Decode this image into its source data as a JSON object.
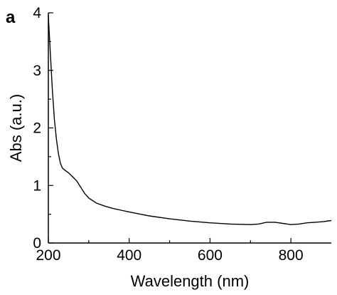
{
  "panel_label": "a",
  "chart_data": {
    "type": "line",
    "title": "",
    "xlabel": "Wavelength (nm)",
    "ylabel": "Abs (a.u.)",
    "xlim": [
      200,
      900
    ],
    "ylim": [
      0,
      4
    ],
    "x_ticks": [
      200,
      400,
      600,
      800
    ],
    "y_ticks": [
      0,
      1,
      2,
      3,
      4
    ],
    "grid": false,
    "series": [
      {
        "x": [
          200,
          205,
          210,
          215,
          220,
          225,
          230,
          235,
          240,
          250,
          260,
          270,
          280,
          290,
          300,
          320,
          340,
          360,
          380,
          400,
          450,
          500,
          550,
          600,
          650,
          700,
          720,
          740,
          760,
          780,
          800,
          820,
          840,
          860,
          880,
          900
        ],
        "values": [
          3.95,
          3.3,
          2.65,
          2.15,
          1.8,
          1.55,
          1.38,
          1.3,
          1.27,
          1.22,
          1.15,
          1.08,
          0.97,
          0.86,
          0.78,
          0.69,
          0.64,
          0.6,
          0.57,
          0.54,
          0.47,
          0.42,
          0.38,
          0.35,
          0.33,
          0.32,
          0.33,
          0.36,
          0.36,
          0.34,
          0.32,
          0.33,
          0.35,
          0.36,
          0.37,
          0.39
        ]
      }
    ]
  }
}
